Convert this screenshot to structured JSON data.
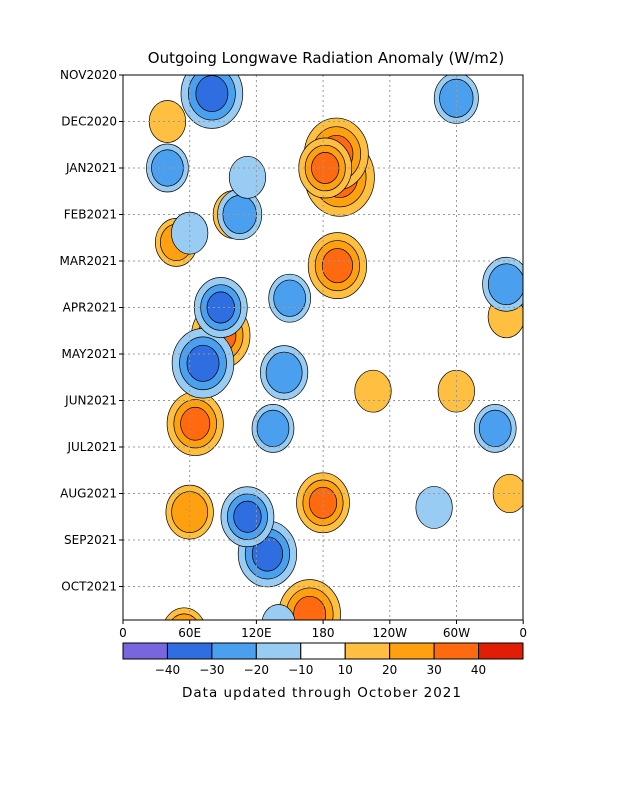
{
  "chart_data": {
    "type": "heatmap",
    "title": "Outgoing Longwave Radiation Anomaly (W/m2)",
    "footnote": "Data updated through October 2021",
    "x_ticks": [
      "0",
      "60E",
      "120E",
      "180",
      "120W",
      "60W",
      "0"
    ],
    "y_ticks": [
      "NOV2020",
      "DEC2020",
      "JAN2021",
      "FEB2021",
      "MAR2021",
      "APR2021",
      "MAY2021",
      "JUN2021",
      "JUL2021",
      "AUG2021",
      "SEP2021",
      "OCT2021"
    ],
    "grid": true,
    "colorbar": {
      "labels": [
        "-40",
        "-30",
        "-20",
        "-10",
        "10",
        "20",
        "30",
        "40"
      ],
      "colors": [
        "#7766dd",
        "#2f6ee0",
        "#4aa0ef",
        "#99ccf2",
        "#ffffff",
        "#ffbf40",
        "#ffa010",
        "#ff6a10",
        "#e01e05"
      ]
    },
    "features": [
      {
        "lon": 195,
        "month": 2.2,
        "value": 45
      },
      {
        "lon": 192,
        "month": 1.7,
        "value": 40
      },
      {
        "lon": 193,
        "month": 4.1,
        "value": 35
      },
      {
        "lon": 182,
        "month": 2.0,
        "value": 30
      },
      {
        "lon": 168,
        "month": 11.6,
        "value": 38
      },
      {
        "lon": 180,
        "month": 9.2,
        "value": 30
      },
      {
        "lon": 88,
        "month": 5.6,
        "value": 35
      },
      {
        "lon": 65,
        "month": 7.5,
        "value": 33
      },
      {
        "lon": 48,
        "month": 3.6,
        "value": 20
      },
      {
        "lon": 100,
        "month": 3.0,
        "value": 20
      },
      {
        "lon": 55,
        "month": 12.0,
        "value": 22
      },
      {
        "lon": 60,
        "month": 9.4,
        "value": 25
      },
      {
        "lon": 40,
        "month": 1.0,
        "value": 15
      },
      {
        "lon": 225,
        "month": 6.8,
        "value": 15
      },
      {
        "lon": 300,
        "month": 6.8,
        "value": 15
      },
      {
        "lon": 345,
        "month": 5.2,
        "value": 15
      },
      {
        "lon": 348,
        "month": 9.0,
        "value": 12
      },
      {
        "lon": 80,
        "month": 0.4,
        "value": -38
      },
      {
        "lon": 72,
        "month": 6.2,
        "value": -38
      },
      {
        "lon": 88,
        "month": 5.0,
        "value": -30
      },
      {
        "lon": 105,
        "month": 3.0,
        "value": -22
      },
      {
        "lon": 130,
        "month": 10.3,
        "value": -35
      },
      {
        "lon": 112,
        "month": 9.5,
        "value": -30
      },
      {
        "lon": 145,
        "month": 6.4,
        "value": -25
      },
      {
        "lon": 135,
        "month": 7.6,
        "value": -20
      },
      {
        "lon": 40,
        "month": 2.0,
        "value": -20
      },
      {
        "lon": 150,
        "month": 4.8,
        "value": -20
      },
      {
        "lon": 300,
        "month": 0.5,
        "value": -22
      },
      {
        "lon": 345,
        "month": 4.5,
        "value": -25
      },
      {
        "lon": 335,
        "month": 7.6,
        "value": -20
      },
      {
        "lon": 280,
        "month": 9.3,
        "value": -15
      },
      {
        "lon": 112,
        "month": 2.2,
        "value": -15
      },
      {
        "lon": 60,
        "month": 3.4,
        "value": -15
      },
      {
        "lon": 140,
        "month": 11.8,
        "value": -12
      }
    ]
  }
}
